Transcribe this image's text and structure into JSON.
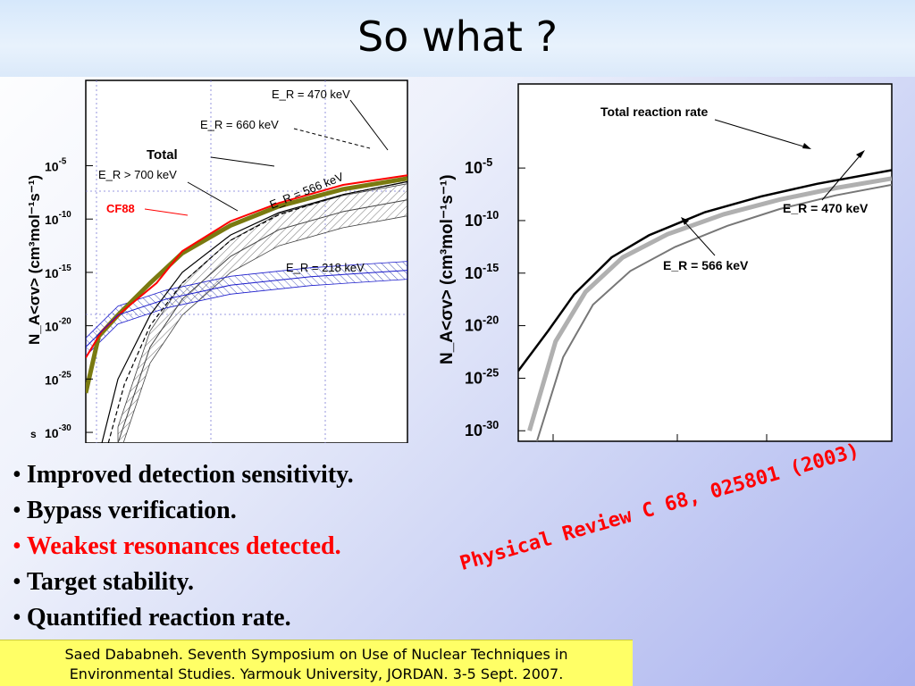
{
  "title": "So what ?",
  "colors": {
    "red": "#ff0000",
    "blue": "#1a1acc",
    "olive": "#7a7a10",
    "grey": "#b0b0b0"
  },
  "bullets": [
    {
      "text": "Improved detection sensitivity.",
      "color": "#000000"
    },
    {
      "text": "Bypass verification.",
      "color": "#000000"
    },
    {
      "text": "Weakest resonances detected.",
      "color": "#ff0000"
    },
    {
      "text": "Target stability.",
      "color": "#000000"
    },
    {
      "text": "Quantified reaction rate.",
      "color": "#000000"
    }
  ],
  "citation": "Physical Review C 68, 025801 (2003)",
  "footer": {
    "line1": "Saed Dababneh. Seventh Symposium on Use of Nuclear Techniques in",
    "line2": "Environmental Studies. Yarmouk University, JORDAN. 3-5 Sept. 2007."
  },
  "chart_data": [
    {
      "type": "line",
      "ylabel": "N_A<σv> (cm³mol⁻¹s⁻¹)",
      "y_log_scale": true,
      "ylim_exponents": [
        -31,
        3
      ],
      "ytick_exponents": [
        -5,
        -10,
        -15,
        -20,
        -25,
        -30
      ],
      "xtick_label_partial": "s",
      "grid": true,
      "annotations": [
        "Total",
        "CF88",
        "E_R = 470 keV",
        "E_R = 660 keV",
        "E_R > 700 keV",
        "E_R = 566 keV",
        "E_R = 218 keV"
      ],
      "series": [
        {
          "name": "Total",
          "x": [
            0.0,
            0.04,
            0.1,
            0.2,
            0.3,
            0.45,
            0.6,
            0.8,
            1.0
          ],
          "exponents": [
            -26.3,
            -21.0,
            -19.0,
            -16.0,
            -13.2,
            -10.6,
            -8.8,
            -7.2,
            -6.2
          ]
        },
        {
          "name": "CF88",
          "x": [
            0.0,
            0.05,
            0.12,
            0.22,
            0.3,
            0.45,
            0.6,
            0.8,
            1.0
          ],
          "exponents": [
            -23.0,
            -20.5,
            -18.5,
            -16.0,
            -13.0,
            -10.2,
            -8.5,
            -6.8,
            -5.9
          ]
        },
        {
          "name": "E_R = 470 keV",
          "x": [
            0.05,
            0.1,
            0.2,
            0.3,
            0.45,
            0.6,
            0.8,
            1.0
          ],
          "exponents": [
            -31.0,
            -25.0,
            -19.0,
            -15.0,
            -11.5,
            -9.4,
            -7.7,
            -6.5
          ]
        },
        {
          "name": "E_R = 660 keV",
          "x": [
            0.07,
            0.12,
            0.2,
            0.3,
            0.45,
            0.6,
            0.8,
            1.0
          ],
          "exponents": [
            -31.0,
            -25.5,
            -20.0,
            -16.0,
            -12.0,
            -9.6,
            -7.7,
            -6.5
          ]
        },
        {
          "name": "E_R = 566 keV",
          "x": [
            0.1,
            0.2,
            0.3,
            0.45,
            0.6,
            0.8,
            1.0
          ],
          "exponents": [
            -31.0,
            -22.0,
            -17.5,
            -13.5,
            -11.0,
            -9.3,
            -8.2
          ]
        },
        {
          "name": "E_R = 218 keV",
          "x": [
            0.0,
            0.1,
            0.25,
            0.45,
            0.7,
            1.0
          ],
          "exponents": [
            -22.0,
            -19.0,
            -17.5,
            -16.2,
            -15.4,
            -14.8
          ]
        }
      ]
    },
    {
      "type": "line",
      "ylabel": "N_A<σv> (cm³mol⁻¹s⁻¹)",
      "y_log_scale": true,
      "ylim_exponents": [
        -31,
        3
      ],
      "ytick_exponents": [
        -5,
        -10,
        -15,
        -20,
        -25,
        -30
      ],
      "grid": false,
      "annotations": [
        "Total reaction rate",
        "E_R = 470 keV",
        "E_R = 566 keV"
      ],
      "series": [
        {
          "name": "Total reaction rate",
          "x": [
            0.0,
            0.08,
            0.15,
            0.25,
            0.35,
            0.5,
            0.65,
            0.8,
            1.0
          ],
          "exponents": [
            -24.3,
            -20.5,
            -17.0,
            -13.5,
            -11.4,
            -9.2,
            -7.7,
            -6.5,
            -5.2
          ]
        },
        {
          "name": "E_R = 470 keV",
          "x": [
            0.03,
            0.1,
            0.18,
            0.28,
            0.4,
            0.55,
            0.7,
            0.85,
            1.0
          ],
          "exponents": [
            -30.0,
            -21.5,
            -16.8,
            -13.5,
            -11.3,
            -9.4,
            -8.0,
            -6.9,
            -6.0
          ]
        },
        {
          "name": "E_R = 566 keV",
          "x": [
            0.05,
            0.12,
            0.2,
            0.3,
            0.42,
            0.56,
            0.7,
            0.85,
            1.0
          ],
          "exponents": [
            -31.0,
            -23.0,
            -18.0,
            -14.8,
            -12.5,
            -10.5,
            -8.9,
            -7.6,
            -6.6
          ]
        }
      ]
    }
  ]
}
